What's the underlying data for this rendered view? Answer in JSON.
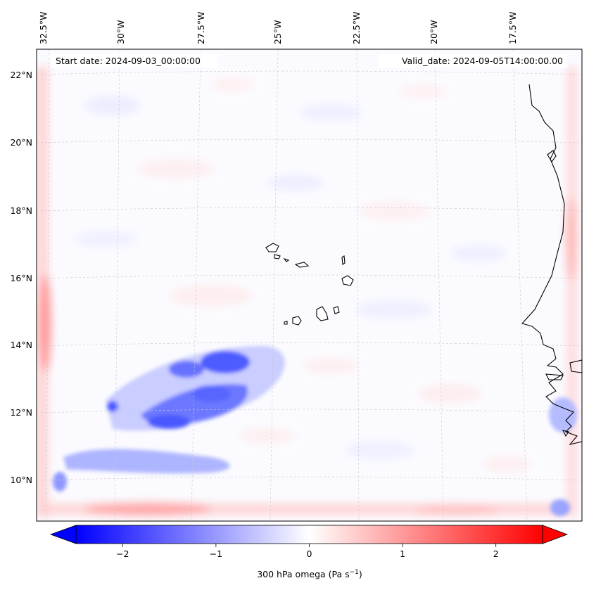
{
  "map": {
    "start_label": "Start date: 2024-09-03_00:00:00",
    "valid_label": "Valid_date: 2024-09-05T14:00:00.00",
    "lon_labels": [
      "32.5°W",
      "30°W",
      "27.5°W",
      "25°W",
      "22.5°W",
      "20°W",
      "17.5°W"
    ],
    "lat_labels": [
      "22°N",
      "20°N",
      "18°N",
      "16°N",
      "14°N",
      "12°N",
      "10°N"
    ],
    "variable": "300 hPa omega",
    "colormap": "bwr"
  },
  "colorbar": {
    "label": "300 hPa omega (Pa s",
    "label_sup": "−1",
    "label_end": ")",
    "ticks": [
      "−2",
      "−1",
      "0",
      "1",
      "2"
    ],
    "tick_values": [
      -2,
      -1,
      0,
      1,
      2
    ],
    "vmin": -2.5,
    "vmax": 2.5,
    "extend": "both",
    "colors": {
      "negative": "#0000ff",
      "zero": "#ffffff",
      "positive": "#ff0000"
    }
  }
}
